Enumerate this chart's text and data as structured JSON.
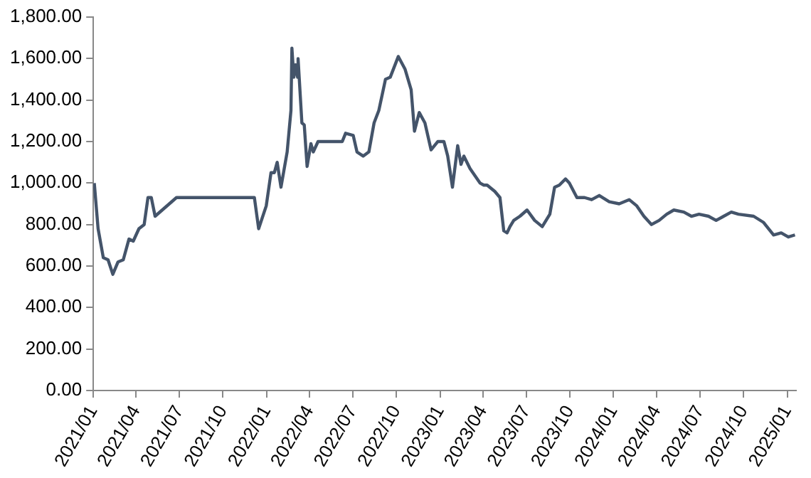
{
  "chart_data": {
    "type": "line",
    "marker": "none",
    "line_style": "solid",
    "legend": false,
    "xlim": [
      "2021-01-01",
      "2025-01-20"
    ],
    "xticks": [
      {
        "value": "2021-01-01",
        "label": "2021/01"
      },
      {
        "value": "2021-04-01",
        "label": "2021/04"
      },
      {
        "value": "2021-07-01",
        "label": "2021/07"
      },
      {
        "value": "2021-10-01",
        "label": "2021/10"
      },
      {
        "value": "2022-01-01",
        "label": "2022/01"
      },
      {
        "value": "2022-04-01",
        "label": "2022/04"
      },
      {
        "value": "2022-07-01",
        "label": "2022/07"
      },
      {
        "value": "2022-10-01",
        "label": "2022/10"
      },
      {
        "value": "2023-01-01",
        "label": "2023/01"
      },
      {
        "value": "2023-04-01",
        "label": "2023/04"
      },
      {
        "value": "2023-07-01",
        "label": "2023/07"
      },
      {
        "value": "2023-10-01",
        "label": "2023/10"
      },
      {
        "value": "2024-01-01",
        "label": "2024/01"
      },
      {
        "value": "2024-04-01",
        "label": "2024/04"
      },
      {
        "value": "2024-07-01",
        "label": "2024/07"
      },
      {
        "value": "2024-10-01",
        "label": "2024/10"
      },
      {
        "value": "2025-01-01",
        "label": "2025/01"
      }
    ],
    "ylim": [
      0,
      1800
    ],
    "yticks": [
      {
        "value": 0,
        "label": "0.00"
      },
      {
        "value": 200,
        "label": "200.00"
      },
      {
        "value": 400,
        "label": "400.00"
      },
      {
        "value": 600,
        "label": "600.00"
      },
      {
        "value": 800,
        "label": "800.00"
      },
      {
        "value": 1000,
        "label": "1,000.00"
      },
      {
        "value": 1200,
        "label": "1,200.00"
      },
      {
        "value": 1400,
        "label": "1,400.00"
      },
      {
        "value": 1600,
        "label": "1,600.00"
      },
      {
        "value": 1800,
        "label": "1,800.00"
      }
    ],
    "x": [
      "2021-01-03",
      "2021-01-11",
      "2021-01-22",
      "2021-02-01",
      "2021-02-11",
      "2021-02-22",
      "2021-03-05",
      "2021-03-17",
      "2021-03-26",
      "2021-04-07",
      "2021-04-18",
      "2021-04-26",
      "2021-05-03",
      "2021-05-11",
      "2021-06-25",
      "2021-12-06",
      "2021-12-15",
      "2021-12-31",
      "2022-01-10",
      "2022-01-17",
      "2022-01-23",
      "2022-01-31",
      "2022-02-13",
      "2022-02-21",
      "2022-02-23",
      "2022-02-27",
      "2022-03-03",
      "2022-03-07",
      "2022-03-08",
      "2022-03-16",
      "2022-03-21",
      "2022-03-27",
      "2022-04-04",
      "2022-04-09",
      "2022-04-19",
      "2022-06-09",
      "2022-06-16",
      "2022-07-02",
      "2022-07-10",
      "2022-07-23",
      "2022-08-04",
      "2022-08-15",
      "2022-08-25",
      "2022-09-08",
      "2022-09-18",
      "2022-10-05",
      "2022-10-19",
      "2022-11-01",
      "2022-11-08",
      "2022-11-18",
      "2022-11-30",
      "2022-12-13",
      "2022-12-27",
      "2023-01-09",
      "2023-01-17",
      "2023-01-27",
      "2023-02-07",
      "2023-02-14",
      "2023-02-20",
      "2023-03-05",
      "2023-03-26",
      "2023-04-03",
      "2023-04-10",
      "2023-04-26",
      "2023-05-07",
      "2023-05-15",
      "2023-05-22",
      "2023-05-28",
      "2023-06-05",
      "2023-06-18",
      "2023-07-03",
      "2023-07-19",
      "2023-08-04",
      "2023-08-20",
      "2023-08-30",
      "2023-09-09",
      "2023-09-22",
      "2023-09-30",
      "2023-10-16",
      "2023-11-01",
      "2023-11-16",
      "2023-12-02",
      "2023-12-23",
      "2024-01-13",
      "2024-02-03",
      "2024-02-19",
      "2024-03-05",
      "2024-03-21",
      "2024-04-06",
      "2024-04-22",
      "2024-05-07",
      "2024-05-28",
      "2024-06-13",
      "2024-06-29",
      "2024-07-19",
      "2024-08-04",
      "2024-08-20",
      "2024-09-05",
      "2024-09-20",
      "2024-10-22",
      "2024-11-12",
      "2024-12-03",
      "2024-12-19",
      "2025-01-03",
      "2025-01-17"
    ],
    "series": [
      {
        "color": "#44546a",
        "values": [
          1000,
          780,
          640,
          630,
          560,
          620,
          630,
          730,
          720,
          780,
          800,
          930,
          930,
          840,
          930,
          930,
          780,
          890,
          1050,
          1050,
          1100,
          980,
          1150,
          1350,
          1650,
          1510,
          1570,
          1510,
          1600,
          1290,
          1280,
          1080,
          1190,
          1150,
          1200,
          1200,
          1240,
          1230,
          1150,
          1130,
          1150,
          1290,
          1350,
          1500,
          1510,
          1610,
          1550,
          1450,
          1250,
          1340,
          1290,
          1160,
          1200,
          1200,
          1130,
          980,
          1180,
          1090,
          1130,
          1070,
          1000,
          990,
          990,
          960,
          930,
          770,
          760,
          790,
          820,
          840,
          870,
          820,
          790,
          850,
          980,
          990,
          1020,
          1000,
          930,
          930,
          920,
          940,
          910,
          900,
          920,
          890,
          840,
          800,
          820,
          850,
          870,
          860,
          840,
          850,
          840,
          820,
          840,
          860,
          850,
          840,
          810,
          750,
          760,
          740,
          750
        ]
      }
    ]
  }
}
